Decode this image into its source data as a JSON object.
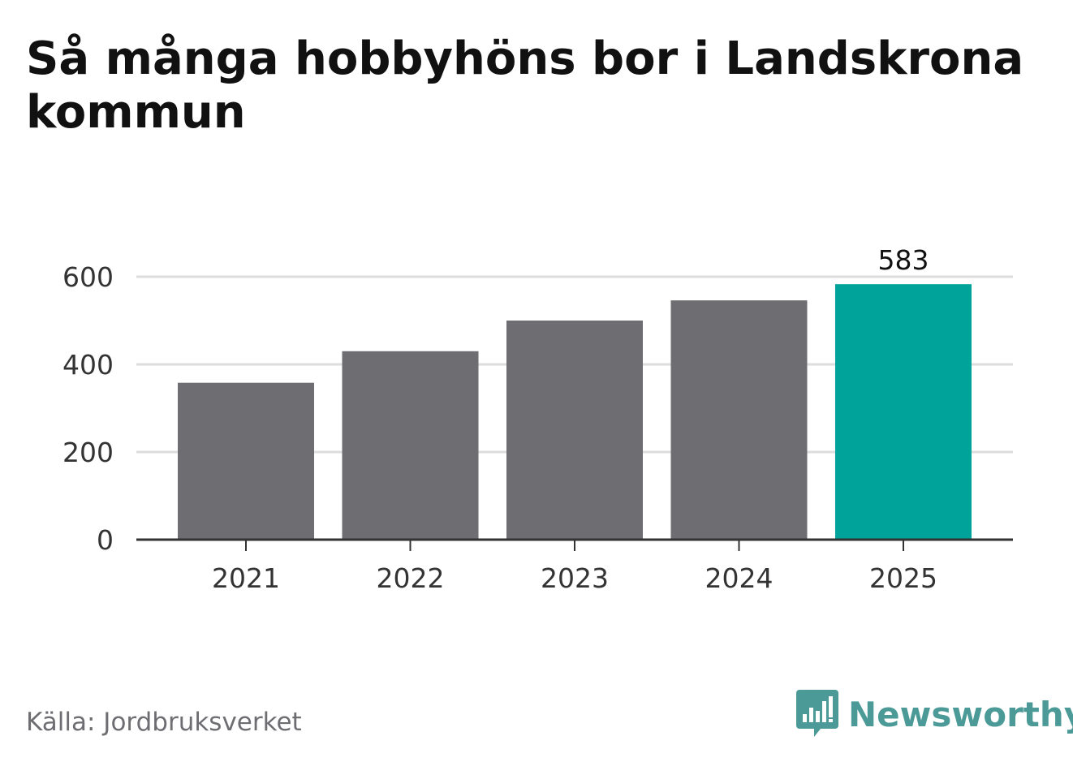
{
  "title": "Så många hobbyhöns bor i Landskrona kommun",
  "source": "Källa: Jordbruksverket",
  "brand": "Newsworthy",
  "colors": {
    "bar": "#6e6d72",
    "highlight": "#00a39a",
    "grid": "#dddddd",
    "axis": "#333333",
    "brand": "#4b9a97"
  },
  "chart_data": {
    "type": "bar",
    "categories": [
      "2021",
      "2022",
      "2023",
      "2024",
      "2025"
    ],
    "values": [
      358,
      430,
      500,
      546,
      583
    ],
    "highlight_index": 4,
    "value_labels": [
      {
        "index": 4,
        "text": "583"
      }
    ],
    "yticks": [
      "0",
      "200",
      "400",
      "600"
    ],
    "ylim": [
      0,
      700
    ],
    "grid": true
  }
}
